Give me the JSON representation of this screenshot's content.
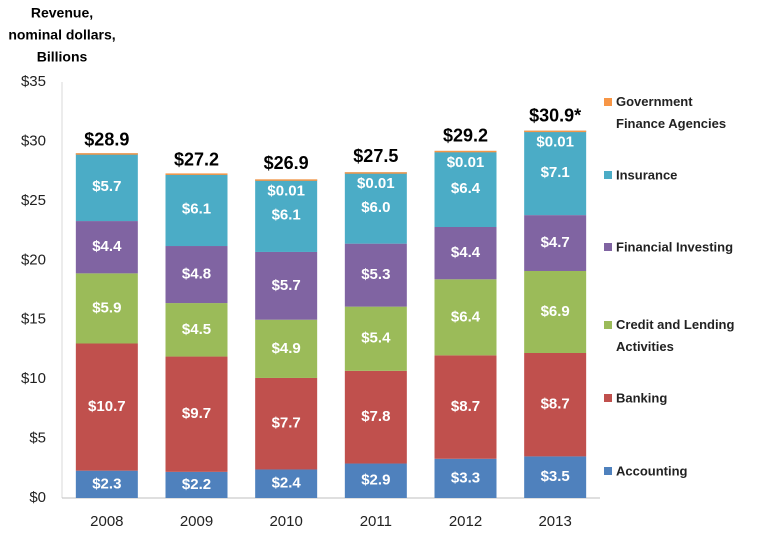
{
  "chart_data": {
    "type": "stacked_bar",
    "ylabel": [
      "Revenue,",
      "nominal dollars,",
      "Billions"
    ],
    "categories": [
      "2008",
      "2009",
      "2010",
      "2011",
      "2012",
      "2013"
    ],
    "series": [
      {
        "name": "Accounting",
        "color": "#4f81bd",
        "values": [
          2.3,
          2.2,
          2.4,
          2.9,
          3.3,
          3.5
        ],
        "value_labels": [
          "$2.3",
          "$2.2",
          "$2.4",
          "$2.9",
          "$3.3",
          "$3.5"
        ]
      },
      {
        "name": "Banking",
        "color": "#c0504d",
        "values": [
          10.7,
          9.7,
          7.7,
          7.8,
          8.7,
          8.7
        ],
        "value_labels": [
          "$10.7",
          "$9.7",
          "$7.7",
          "$7.8",
          "$8.7",
          "$8.7"
        ]
      },
      {
        "name": "Credit and Lending Activities",
        "color": "#9bbb59",
        "values": [
          5.9,
          4.5,
          4.9,
          5.4,
          6.4,
          6.9
        ],
        "value_labels": [
          "$5.9",
          "$4.5",
          "$4.9",
          "$5.4",
          "$6.4",
          "$6.9"
        ]
      },
      {
        "name": "Financial Investing",
        "color": "#8064a2",
        "values": [
          4.4,
          4.8,
          5.7,
          5.3,
          4.4,
          4.7
        ],
        "value_labels": [
          "$4.4",
          "$4.8",
          "$5.7",
          "$5.3",
          "$4.4",
          "$4.7"
        ]
      },
      {
        "name": "Insurance",
        "color": "#4bacc6",
        "values": [
          5.7,
          6.1,
          6.1,
          6.0,
          6.4,
          7.1
        ],
        "value_labels": [
          "$5.7",
          "$6.1",
          "$6.1",
          "$6.0",
          "$6.4",
          "$7.1"
        ]
      },
      {
        "name": "Government Finance Agencies",
        "color": "#f79646",
        "values": [
          0.01,
          0.01,
          0.01,
          0.01,
          0.01,
          0.01
        ],
        "value_labels": [
          null,
          null,
          "$0.01",
          "$0.01",
          "$0.01",
          "$0.01"
        ]
      }
    ],
    "totals": {
      "values": [
        28.9,
        27.2,
        26.9,
        27.5,
        29.2,
        30.9
      ],
      "value_labels": [
        "$28.9",
        "$27.2",
        "$26.9",
        "$27.5",
        "$29.2",
        "$30.9*"
      ]
    },
    "ylim": [
      0,
      35
    ],
    "yticks": [
      {
        "value": 0,
        "label": "$0"
      },
      {
        "value": 5,
        "label": "$5"
      },
      {
        "value": 10,
        "label": "$10"
      },
      {
        "value": 15,
        "label": "$15"
      },
      {
        "value": 20,
        "label": "$20"
      },
      {
        "value": 25,
        "label": "$25"
      },
      {
        "value": 30,
        "label": "$30"
      },
      {
        "value": 35,
        "label": "$35"
      }
    ],
    "grid": false,
    "legend": "right"
  }
}
